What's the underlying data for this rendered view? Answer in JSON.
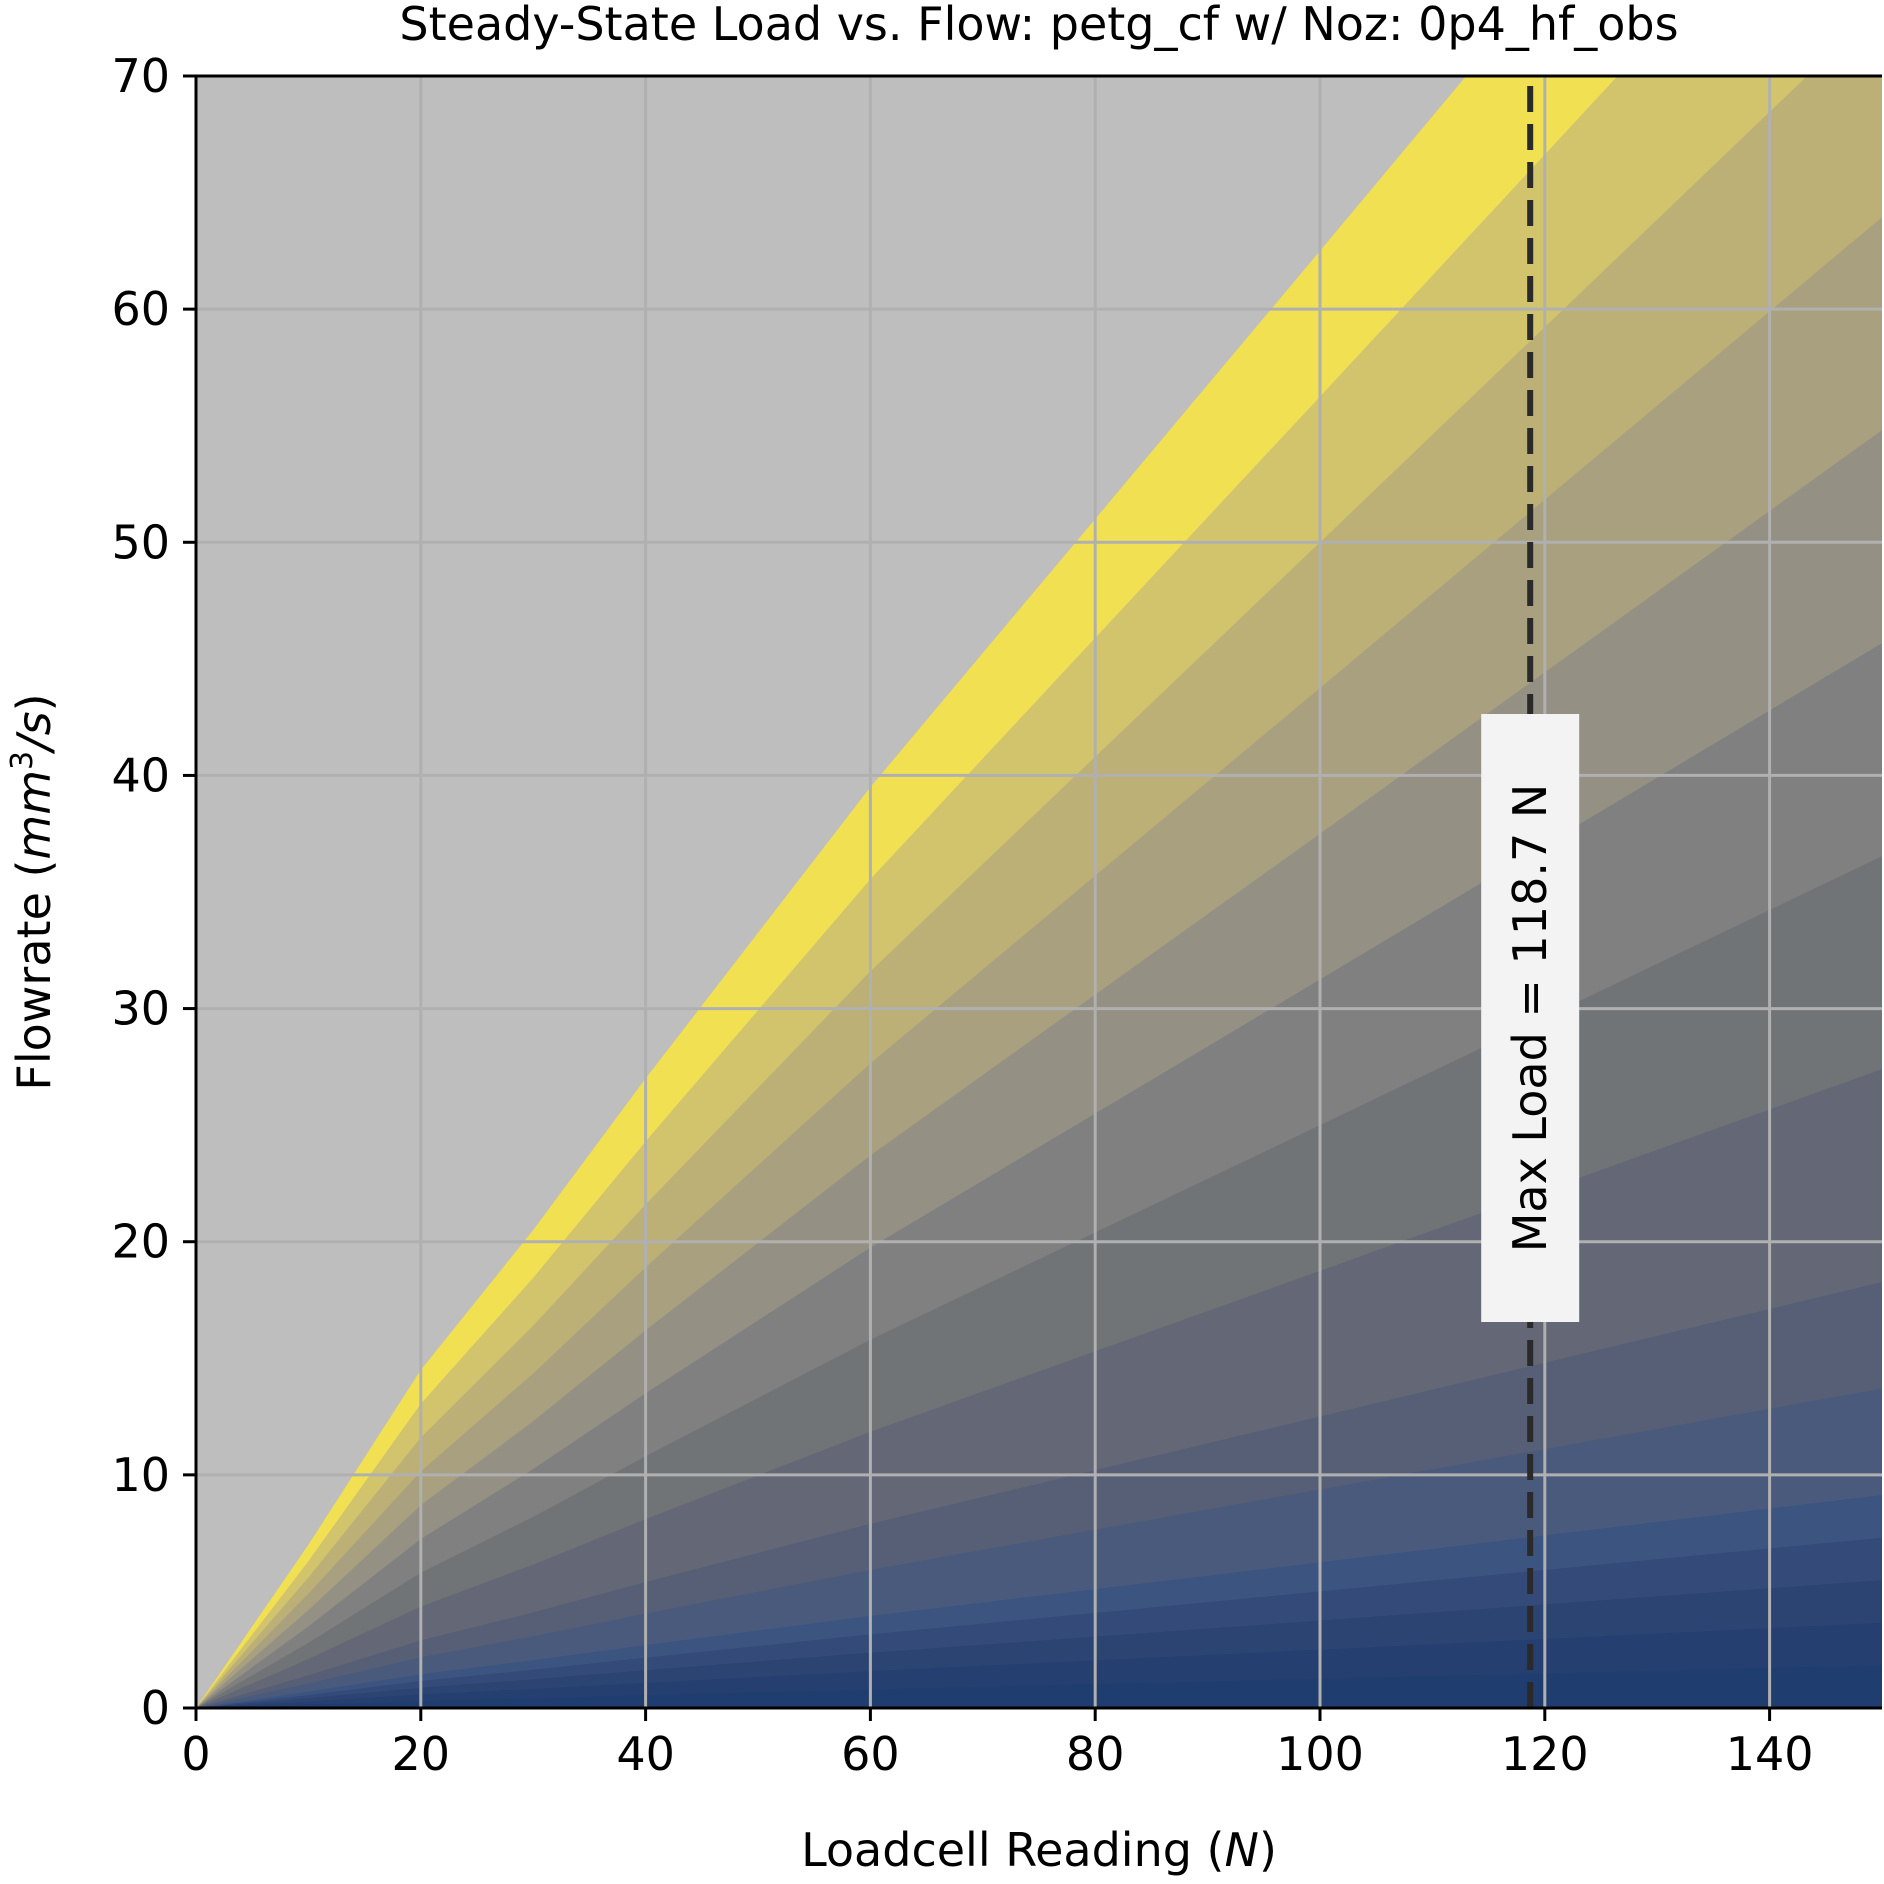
{
  "chart_data": {
    "type": "area",
    "title": "Steady-State Load vs. Flow: petg_cf w/ Noz: 0p4_hf_obs",
    "xlabel_text": "Loadcell Reading (",
    "xlabel_unit": "N",
    "xlabel_close": ")",
    "ylabel_text": "Flowrate (",
    "ylabel_unit": "mm",
    "ylabel_sup": "3",
    "ylabel_unit2": "/s",
    "ylabel_close": ")",
    "xlim": [
      0,
      150
    ],
    "ylim": [
      0,
      70
    ],
    "xticks": [
      0,
      20,
      40,
      60,
      80,
      100,
      120,
      140
    ],
    "yticks": [
      0,
      10,
      20,
      30,
      40,
      50,
      60,
      70
    ],
    "grid": true,
    "background_color": "#bebebe",
    "boundary_points": [
      [
        0,
        0
      ],
      [
        10,
        7
      ],
      [
        20,
        14.5
      ],
      [
        30,
        20.5
      ],
      [
        40,
        27
      ],
      [
        60,
        39.5
      ],
      [
        80,
        51
      ],
      [
        100,
        62.5
      ],
      [
        113,
        70
      ]
    ],
    "band_fractions": [
      0,
      0.02,
      0.04,
      0.06,
      0.08,
      0.1,
      0.15,
      0.2,
      0.3,
      0.4,
      0.5,
      0.6,
      0.7,
      0.8,
      0.9,
      1.0
    ],
    "band_colors": [
      "#1f3d6e",
      "#243f70",
      "#2b4472",
      "#344a78",
      "#3c5580",
      "#4a5a7c",
      "#565f76",
      "#636776",
      "#707476",
      "#808080",
      "#949084",
      "#a8a07e",
      "#bcb076",
      "#d2c46c",
      "#f0e052"
    ],
    "max_load": {
      "value": 118.7,
      "label": "Max Load = 118.7 N"
    }
  }
}
